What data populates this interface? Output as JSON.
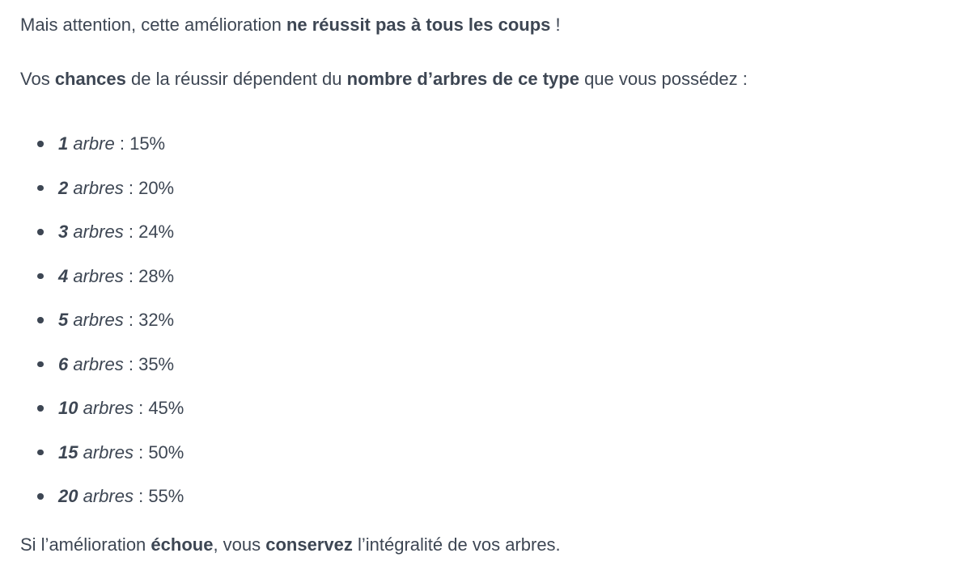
{
  "page": {
    "background_color": "#ffffff",
    "text_color": "#3d4653"
  },
  "paragraphs": {
    "intro": [
      {
        "t": "Mais attention, cette amélioration "
      },
      {
        "t": "ne réussit pas à tous les coups",
        "bold": true
      },
      {
        "t": " !"
      }
    ],
    "chances": [
      {
        "t": "Vos "
      },
      {
        "t": "chances",
        "bold": true
      },
      {
        "t": " de la réussir dépendent du "
      },
      {
        "t": "nombre d’arbres de ce type",
        "bold": true
      },
      {
        "t": " que vous possédez :"
      }
    ],
    "failure": [
      {
        "t": "Si l’amélioration "
      },
      {
        "t": "échoue",
        "bold": true
      },
      {
        "t": ", vous "
      },
      {
        "t": "conservez",
        "bold": true
      },
      {
        "t": " l’intégralité de vos arbres."
      }
    ]
  },
  "list": {
    "separator": " : ",
    "items": [
      {
        "count": "1",
        "noun": "arbre",
        "sep": " : ",
        "percent": "15%"
      },
      {
        "count": "2",
        "noun": "arbres",
        "sep": " : ",
        "percent": "20%"
      },
      {
        "count": "3",
        "noun": "arbres",
        "sep": " : ",
        "percent": "24%"
      },
      {
        "count": "4",
        "noun": "arbres",
        "sep": " : ",
        "percent": "28%"
      },
      {
        "count": "5",
        "noun": "arbres",
        "sep": " : ",
        "percent": "32%"
      },
      {
        "count": "6",
        "noun": "arbres",
        "sep": " : ",
        "percent": "35%"
      },
      {
        "count": "10",
        "noun": "arbres",
        "sep": " : ",
        "percent": "45%"
      },
      {
        "count": "15",
        "noun": "arbres",
        "sep": " : ",
        "percent": "50%"
      },
      {
        "count": "20",
        "noun": "arbres",
        "sep": " : ",
        "percent": "55%"
      }
    ]
  }
}
